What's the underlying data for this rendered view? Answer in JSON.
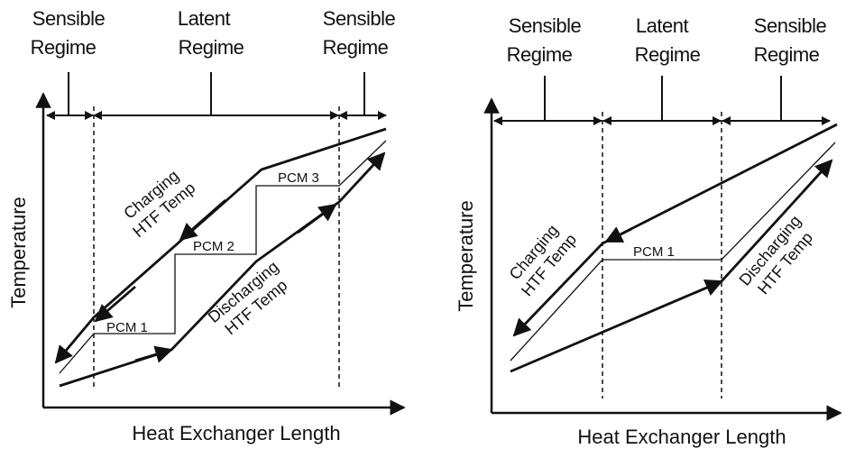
{
  "left_diagram": {
    "regimes": {
      "left": [
        "Sensible",
        "Regime"
      ],
      "middle": [
        "Latent",
        "Regime"
      ],
      "right": [
        "Sensible",
        "Regime"
      ]
    },
    "y_axis_label": "Temperature",
    "x_axis_label": "Heat Exchanger Length",
    "charging_label": [
      "Charging",
      "HTF Temp"
    ],
    "discharging_label": [
      "Discharging",
      "HTF Temp"
    ],
    "pcm_labels": [
      "PCM 1",
      "PCM 2",
      "PCM 3"
    ]
  },
  "right_diagram": {
    "regimes": {
      "left": [
        "Sensible",
        "Regime"
      ],
      "middle": [
        "Latent",
        "Regime"
      ],
      "right": [
        "Sensible",
        "Regime"
      ]
    },
    "y_axis_label": "Temperature",
    "x_axis_label": "Heat Exchanger Length",
    "charging_label": [
      "Charging",
      "HTF Temp"
    ],
    "discharging_label": [
      "Discharging",
      "HTF Temp"
    ],
    "pcm_labels": [
      "PCM 1"
    ]
  },
  "colors": {
    "line": "#111111",
    "background": "#ffffff"
  }
}
